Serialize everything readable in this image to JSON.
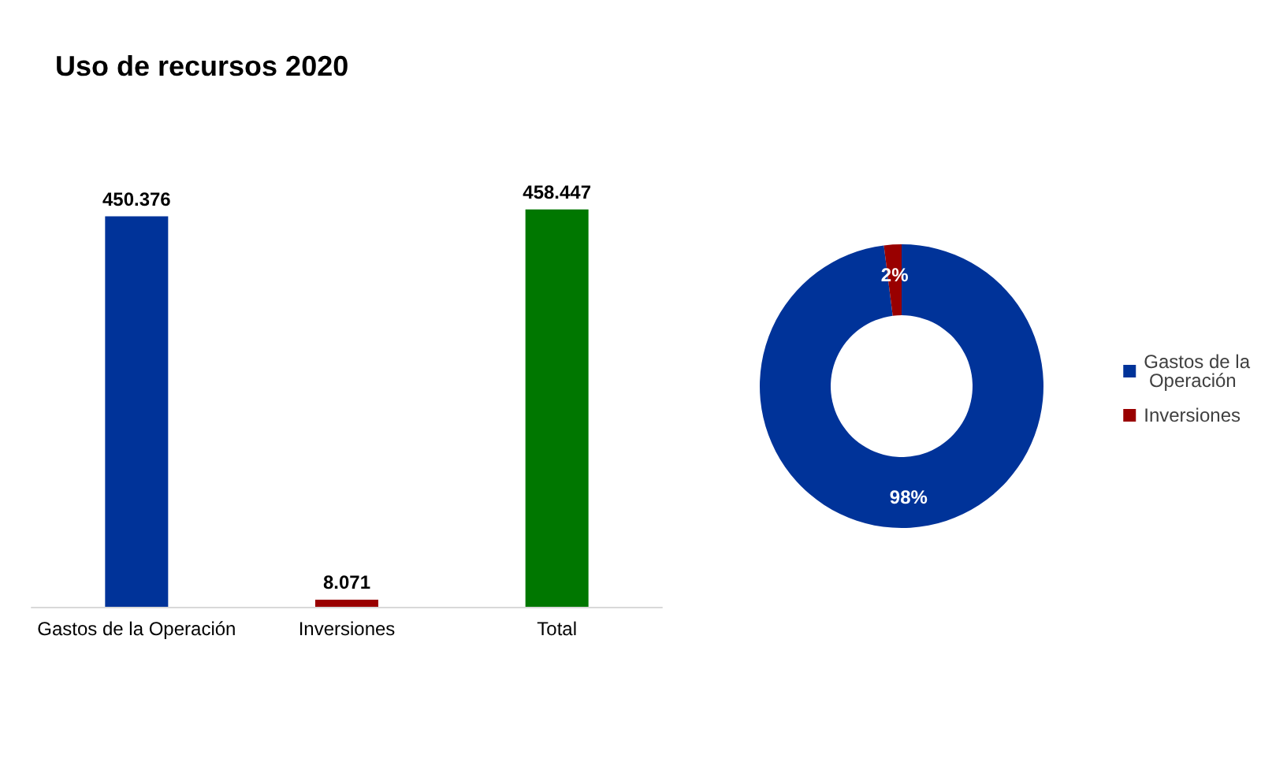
{
  "chart_data": [
    {
      "type": "bar",
      "title": "Uso de recursos 2020",
      "categories": [
        "Gastos de la Operación",
        "Inversiones",
        "Total"
      ],
      "values": [
        450376,
        8071,
        458447
      ],
      "colors": [
        "#003399",
        "#990000",
        "#007700"
      ],
      "value_labels": [
        "450.376",
        "8.071",
        "458.447"
      ]
    },
    {
      "type": "donut",
      "categories": [
        "Gastos de la Operación",
        "Inversiones"
      ],
      "values": [
        98,
        2
      ],
      "colors": [
        "#003399",
        "#990000"
      ],
      "value_labels": [
        "98%",
        "2%"
      ],
      "legend": "right"
    }
  ]
}
